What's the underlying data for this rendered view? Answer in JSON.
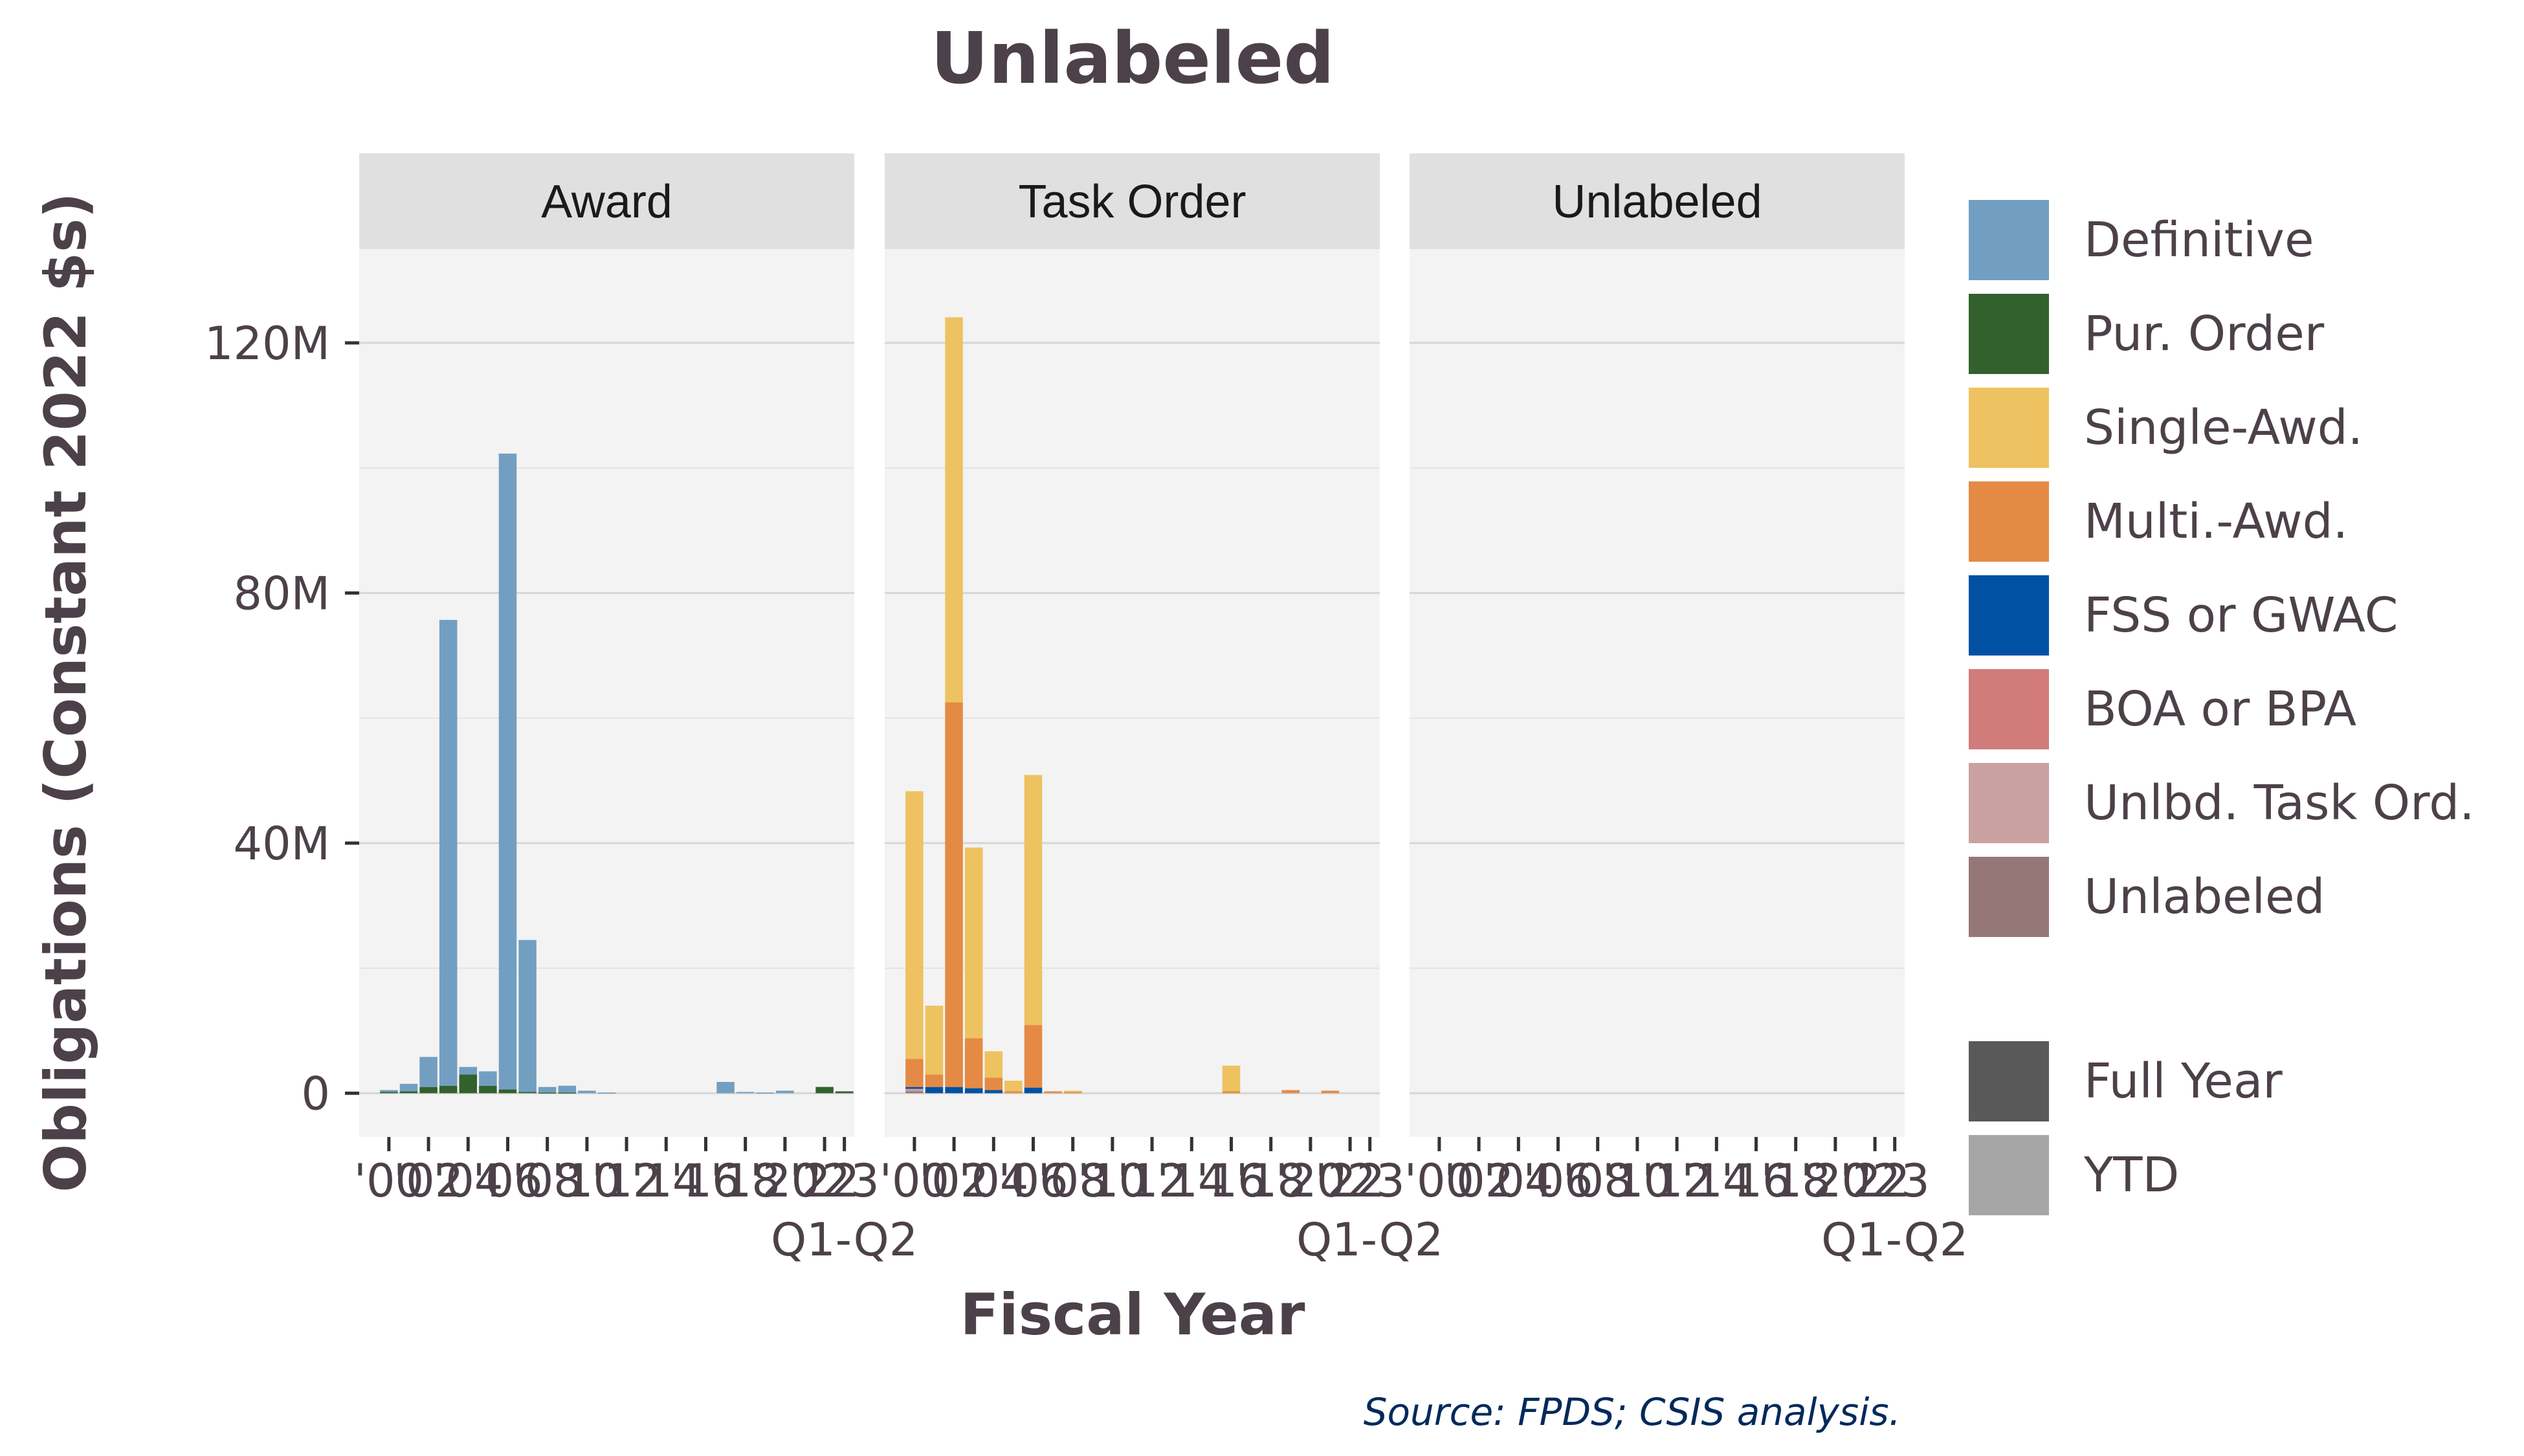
{
  "chart_data": {
    "type": "bar",
    "stacked": true,
    "faceted": true,
    "title": "Unlabeled",
    "xlabel": "Fiscal Year",
    "ylabel": "Obligations (Constant 2022 $s)",
    "source": "Source: FPDS; CSIS analysis.",
    "ylim": [
      -7000000,
      135000000
    ],
    "yticks": [
      {
        "value": 0,
        "label": "0"
      },
      {
        "value": 40000000,
        "label": "40M"
      },
      {
        "value": 80000000,
        "label": "80M"
      },
      {
        "value": 120000000,
        "label": "120M"
      }
    ],
    "xlim": [
      1998.5,
      2023.5
    ],
    "xticks": [
      {
        "value": 2000,
        "label": "'00"
      },
      {
        "value": 2002,
        "label": "'02"
      },
      {
        "value": 2004,
        "label": "'04"
      },
      {
        "value": 2006,
        "label": "'06"
      },
      {
        "value": 2008,
        "label": "'08"
      },
      {
        "value": 2010,
        "label": "'10"
      },
      {
        "value": 2012,
        "label": "'12"
      },
      {
        "value": 2014,
        "label": "'14"
      },
      {
        "value": 2016,
        "label": "'16"
      },
      {
        "value": 2018,
        "label": "'18"
      },
      {
        "value": 2020,
        "label": "'20"
      },
      {
        "value": 2022,
        "label": "'22"
      },
      {
        "value": 2023,
        "label": "'23"
      }
    ],
    "xtick_sublabel": {
      "value": 2023,
      "label": "Q1-Q2"
    },
    "grid": true,
    "legend_position": "right",
    "panels": [
      "Award",
      "Task Order",
      "Unlabeled"
    ],
    "categories": [
      "Definitive",
      "Pur. Order",
      "Single-Awd.",
      "Multi.-Awd.",
      "FSS or GWAC",
      "BOA or BPA",
      "Unlbd. Task Ord.",
      "Unlabeled"
    ],
    "colors": {
      "Definitive": "#729fc1",
      "Pur. Order": "#32612d",
      "Single-Awd.": "#eec260",
      "Multi.-Awd.": "#e48a45",
      "FSS or GWAC": "#0051a3",
      "BOA or BPA": "#d27b7b",
      "Unlbd. Task Ord.": "#c9a1a1",
      "Unlabeled": "#967778"
    },
    "periods": [
      {
        "label": "Full Year",
        "color": "#595959"
      },
      {
        "label": "YTD",
        "color": "#a6a6a6"
      }
    ],
    "series": [
      {
        "panel": "Award",
        "name": "Pur. Order",
        "x": [
          2000,
          2001,
          2002,
          2003,
          2004,
          2005,
          2006,
          2007,
          2008,
          2009,
          2010,
          2011,
          2012,
          2013,
          2014,
          2015,
          2016,
          2017,
          2018,
          2019,
          2020,
          2021,
          2022,
          2023
        ],
        "values": [
          200000,
          300000,
          1000000,
          1200000,
          3000000,
          1200000,
          600000,
          200000,
          100000,
          100000,
          0,
          0,
          0,
          0,
          0,
          0,
          0,
          0,
          0,
          0,
          0,
          0,
          1000000,
          300000
        ]
      },
      {
        "panel": "Award",
        "name": "Definitive",
        "x": [
          2000,
          2001,
          2002,
          2003,
          2004,
          2005,
          2006,
          2007,
          2008,
          2009,
          2010,
          2011,
          2012,
          2013,
          2014,
          2015,
          2016,
          2017,
          2018,
          2019,
          2020,
          2021,
          2022,
          2023
        ],
        "values": [
          300000,
          1200000,
          4800000,
          74500000,
          1200000,
          2300000,
          101700000,
          24300000,
          900000,
          1100000,
          400000,
          100000,
          0,
          0,
          0,
          0,
          0,
          1800000,
          200000,
          100000,
          400000,
          0,
          0,
          0
        ]
      },
      {
        "panel": "Task Order",
        "name": "Unlabeled",
        "x": [
          2000
        ],
        "values": [
          300000
        ]
      },
      {
        "panel": "Task Order",
        "name": "Unlbd. Task Ord.",
        "x": [
          2000
        ],
        "values": [
          400000
        ]
      },
      {
        "panel": "Task Order",
        "name": "FSS or GWAC",
        "x": [
          2000,
          2001,
          2002,
          2003,
          2004,
          2005,
          2006,
          2007
        ],
        "values": [
          300000,
          1000000,
          1000000,
          800000,
          500000,
          0,
          900000,
          0
        ]
      },
      {
        "panel": "Task Order",
        "name": "Multi.-Awd.",
        "x": [
          2000,
          2001,
          2002,
          2003,
          2004,
          2005,
          2006,
          2007,
          2008,
          2009,
          2010,
          2011,
          2012,
          2013,
          2014,
          2015,
          2016,
          2017,
          2018,
          2019,
          2020,
          2021,
          2022,
          2023
        ],
        "values": [
          4500000,
          2000000,
          61500000,
          8000000,
          2000000,
          300000,
          10000000,
          300000,
          200000,
          0,
          0,
          0,
          0,
          0,
          0,
          0,
          300000,
          0,
          0,
          500000,
          0,
          400000,
          0,
          0
        ]
      },
      {
        "panel": "Task Order",
        "name": "Single-Awd.",
        "x": [
          2000,
          2001,
          2002,
          2003,
          2004,
          2005,
          2006,
          2007,
          2008,
          2009,
          2010,
          2011,
          2012,
          2013,
          2014,
          2015,
          2016,
          2017,
          2018,
          2019,
          2020,
          2021,
          2022,
          2023
        ],
        "values": [
          42800000,
          11000000,
          61600000,
          30500000,
          4200000,
          1700000,
          40000000,
          0,
          200000,
          0,
          0,
          0,
          0,
          0,
          0,
          0,
          4100000,
          0,
          0,
          0,
          0,
          0,
          0,
          0
        ]
      }
    ]
  }
}
